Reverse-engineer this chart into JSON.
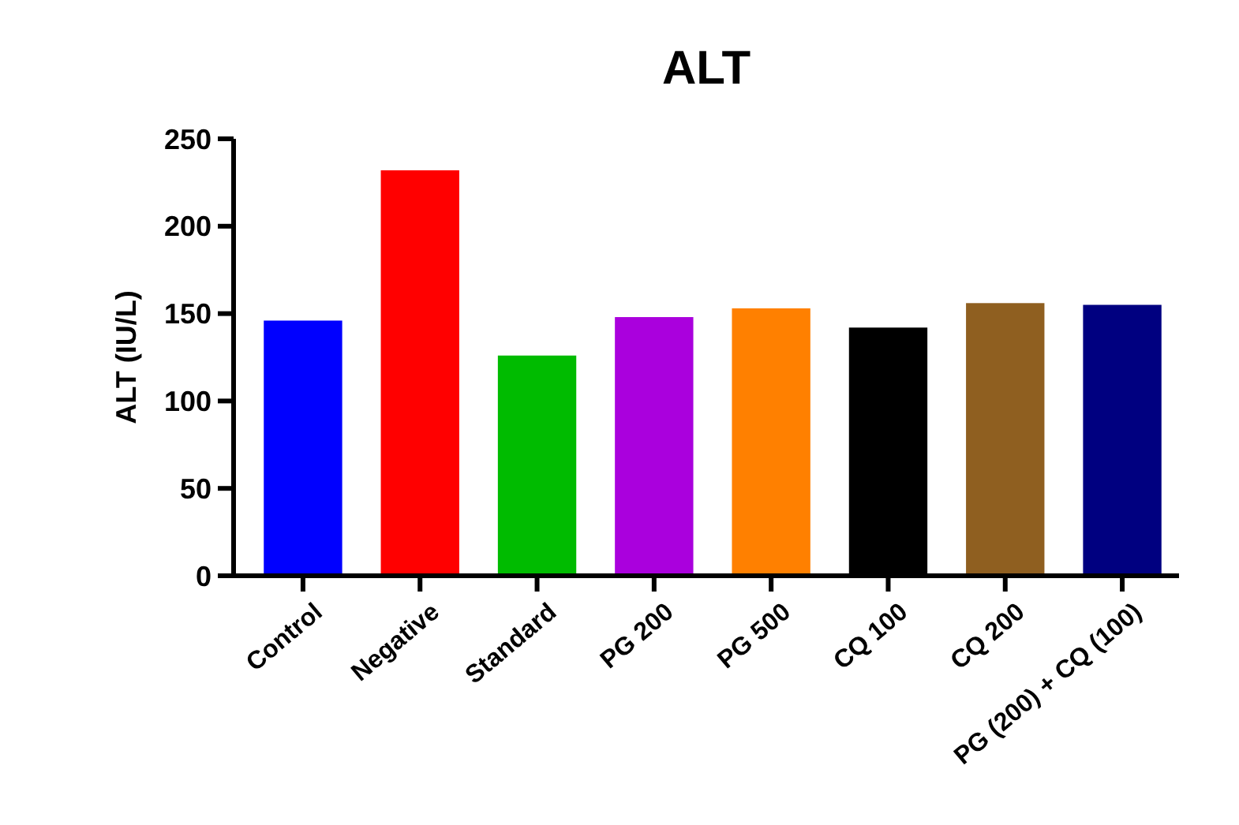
{
  "chart_data": {
    "type": "bar",
    "title": "ALT",
    "ylabel": "ALT (IU/L)",
    "categories": [
      "Control",
      "Negative",
      "Standard",
      "PG 200",
      "PG 500",
      "CQ 100",
      "CQ 200",
      "PG (200) + CQ (100)"
    ],
    "values": [
      146,
      232,
      126,
      148,
      153,
      142,
      156,
      155
    ],
    "colors": [
      "#0000ff",
      "#ff0000",
      "#00bb00",
      "#aa00dd",
      "#ff8000",
      "#000000",
      "#8f5f20",
      "#000080"
    ],
    "ylim": [
      0,
      250
    ],
    "yticks": [
      0,
      50,
      100,
      150,
      200,
      250
    ],
    "grid": false,
    "legend": false
  }
}
